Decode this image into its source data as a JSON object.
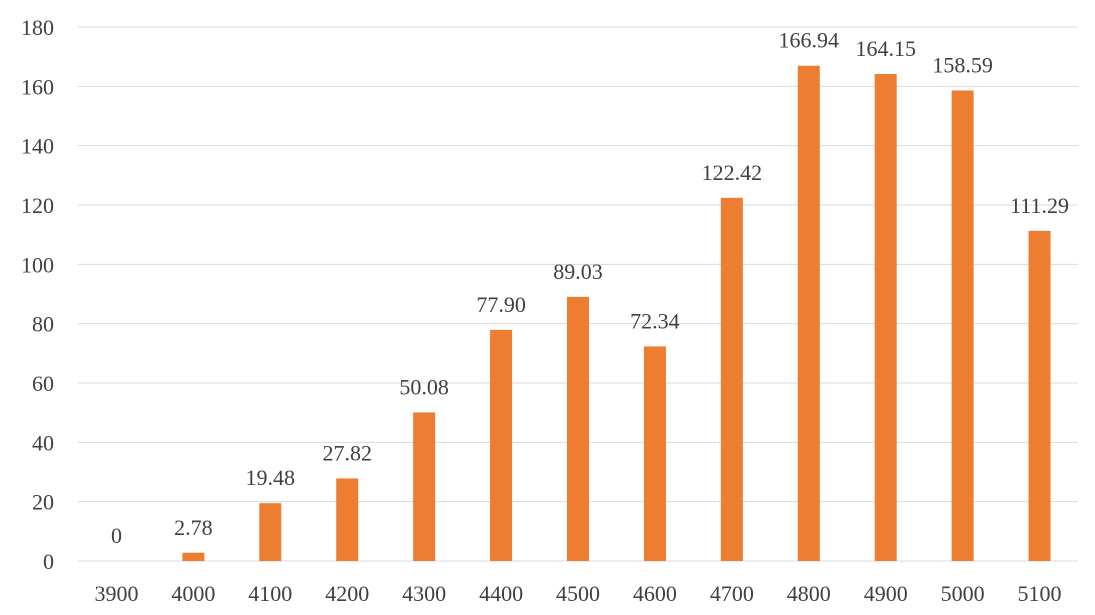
{
  "chart_data": {
    "type": "bar",
    "title": "",
    "xlabel": "",
    "ylabel": "",
    "categories": [
      "3900",
      "4000",
      "4100",
      "4200",
      "4300",
      "4400",
      "4500",
      "4600",
      "4700",
      "4800",
      "4900",
      "5000",
      "5100"
    ],
    "values": [
      0,
      2.78,
      19.48,
      27.82,
      50.08,
      77.9,
      89.03,
      72.34,
      122.42,
      166.94,
      164.15,
      158.59,
      111.29
    ],
    "data_labels": [
      "0",
      "2.78",
      "19.48",
      "27.82",
      "50.08",
      "77.90",
      "89.03",
      "72.34",
      "122.42",
      "166.94",
      "164.15",
      "158.59",
      "111.29"
    ],
    "ylim": [
      0,
      180
    ],
    "y_ticks": [
      "0",
      "20",
      "40",
      "60",
      "80",
      "100",
      "120",
      "140",
      "160",
      "180"
    ],
    "grid": true,
    "legend": "none",
    "bar_color": "#ed7d31"
  }
}
